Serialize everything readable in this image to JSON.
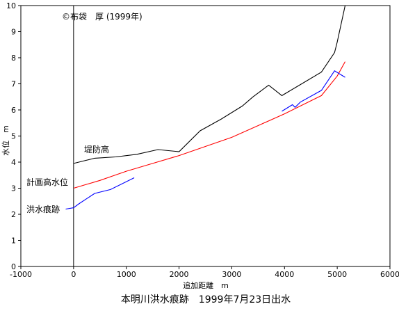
{
  "chart_data": {
    "type": "line",
    "title": "本明川洪水痕跡　1999年7月23日出水",
    "copyright": "©布袋　厚 (1999年)",
    "xlabel": "追加距離　m",
    "ylabel": "水位　m",
    "xlim": [
      -1000,
      6000
    ],
    "ylim": [
      0,
      10
    ],
    "xticks": [
      -1000,
      0,
      1000,
      2000,
      3000,
      4000,
      5000,
      6000
    ],
    "yticks": [
      0,
      1,
      2,
      3,
      4,
      5,
      6,
      7,
      8,
      9,
      10
    ],
    "grid": false,
    "series": [
      {
        "name": "堤防高",
        "color": "#000000",
        "x": [
          0,
          200,
          400,
          800,
          1200,
          1600,
          2000,
          2400,
          2800,
          3200,
          3400,
          3700,
          3950,
          4200,
          4700,
          4950,
          5000,
          5150
        ],
        "y": [
          3.95,
          4.05,
          4.15,
          4.2,
          4.3,
          4.48,
          4.4,
          5.2,
          5.65,
          6.15,
          6.5,
          6.95,
          6.55,
          6.85,
          7.45,
          8.2,
          8.6,
          10.0
        ]
      },
      {
        "name": "計画高水位",
        "color": "#ff0000",
        "x": [
          0,
          500,
          1000,
          1500,
          2000,
          2500,
          3000,
          3500,
          4000,
          4500,
          4700,
          5000,
          5150
        ],
        "y": [
          3.0,
          3.3,
          3.65,
          3.95,
          4.25,
          4.6,
          4.95,
          5.4,
          5.85,
          6.35,
          6.55,
          7.3,
          7.85
        ]
      },
      {
        "name": "洪水痕跡",
        "color": "#0000ff",
        "segments": [
          {
            "x": [
              -150,
              0,
              100,
              400,
              700,
              1150
            ],
            "y": [
              2.2,
              2.25,
              2.4,
              2.8,
              2.95,
              3.4
            ]
          },
          {
            "x": [
              3950,
              4150,
              4200,
              4300,
              4700,
              4950,
              5150
            ],
            "y": [
              5.95,
              6.2,
              6.1,
              6.3,
              6.75,
              7.5,
              7.25
            ]
          }
        ]
      }
    ],
    "annotations": [
      {
        "text": "堤防高",
        "series": "堤防高"
      },
      {
        "text": "計画高水位",
        "series": "計画高水位"
      },
      {
        "text": "洪水痕跡",
        "series": "洪水痕跡"
      }
    ]
  }
}
